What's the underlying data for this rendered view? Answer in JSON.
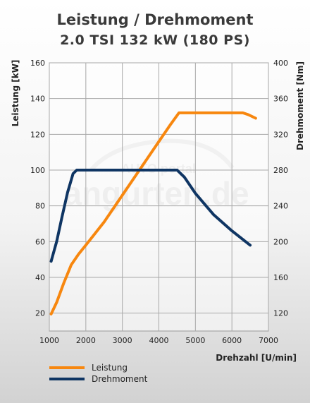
{
  "header": {
    "title": "Leistung / Drehmoment",
    "subtitle": "2.0 TSI 132 kW (180 PS)"
  },
  "watermark": {
    "line1": "AUTO portal",
    "line2": "angurten.de"
  },
  "chart_data": {
    "type": "line",
    "xlabel": "Drehzahl [U/min]",
    "xlim": [
      1000,
      7000
    ],
    "xticks": [
      1000,
      2000,
      3000,
      4000,
      5000,
      6000,
      7000
    ],
    "y_left": {
      "label": "Leistung [kW]",
      "lim": [
        10,
        160
      ],
      "ticks": [
        20,
        40,
        60,
        80,
        100,
        120,
        140,
        160
      ]
    },
    "y_right": {
      "label": "Drehmoment [Nm]",
      "lim": [
        100,
        400
      ],
      "ticks": [
        120,
        160,
        200,
        240,
        280,
        320,
        360,
        400
      ]
    },
    "grid": true,
    "legend_position": "bottom-left",
    "series": [
      {
        "name": "Leistung",
        "axis": "left",
        "color": "#f7870f",
        "x": [
          1050,
          1200,
          1400,
          1600,
          1800,
          2000,
          2500,
          3000,
          3500,
          4000,
          4300,
          4550,
          5000,
          5500,
          6000,
          6300,
          6450,
          6650
        ],
        "y": [
          19.5,
          26,
          37,
          47,
          53,
          58,
          71,
          86,
          101,
          116,
          125,
          132,
          132,
          132,
          132,
          132,
          131,
          129
        ]
      },
      {
        "name": "Drehmoment",
        "axis": "right",
        "color": "#0f3563",
        "x": [
          1050,
          1200,
          1350,
          1500,
          1650,
          1750,
          2000,
          3000,
          4000,
          4500,
          4700,
          5000,
          5500,
          6000,
          6500
        ],
        "y": [
          178,
          200,
          228,
          255,
          276,
          280,
          280,
          280,
          280,
          280,
          272,
          254,
          230,
          212,
          196
        ]
      }
    ]
  }
}
